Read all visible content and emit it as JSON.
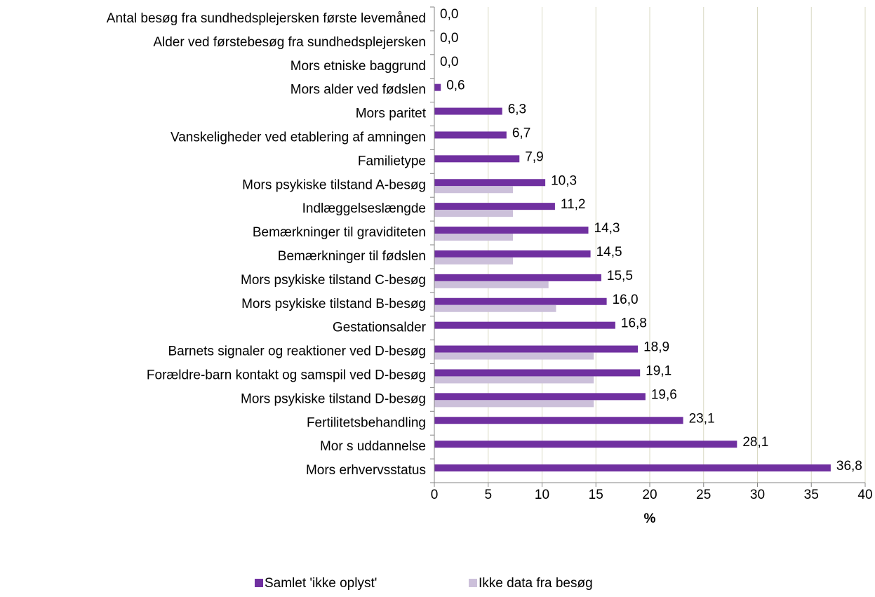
{
  "chart_data": {
    "type": "bar",
    "orientation": "horizontal",
    "categories": [
      "Antal besøg fra sundhedsplejersken første levemåned",
      "Alder ved førstebesøg fra sundhedsplejersken",
      "Mors etniske baggrund",
      "Mors alder ved fødslen",
      "Mors paritet",
      "Vanskeligheder ved etablering af amningen",
      "Familietype",
      "Mors psykiske tilstand A-besøg",
      "Indlæggelseslængde",
      "Bemærkninger til graviditeten",
      "Bemærkninger til fødslen",
      "Mors psykiske tilstand C-besøg",
      "Mors psykiske tilstand B-besøg",
      "Gestationsalder",
      "Barnets signaler og reaktioner ved D-besøg",
      "Forældre-barn kontakt og samspil ved D-besøg",
      "Mors psykiske tilstand D-besøg",
      "Fertilitetsbehandling",
      "Mor s uddannelse",
      "Mors erhvervsstatus"
    ],
    "series": [
      {
        "name": "Samlet 'ikke oplyst'",
        "color": "#7030a0",
        "values": [
          0,
          0,
          0,
          0.6,
          6.3,
          6.7,
          7.9,
          10.3,
          11.2,
          14.3,
          14.5,
          15.5,
          16.0,
          16.8,
          18.9,
          19.1,
          19.6,
          23.1,
          28.1,
          36.8
        ],
        "value_labels": [
          "0,0",
          "0,0",
          "0,0",
          "0,6",
          "6,3",
          "6,7",
          "7,9",
          "10,3",
          "11,2",
          "14,3",
          "14,5",
          "15,5",
          "16,0",
          "16,8",
          "18,9",
          "19,1",
          "19,6",
          "23,1",
          "28,1",
          "36,8"
        ]
      },
      {
        "name": "Ikke data fra besøg",
        "color": "#ccc0da",
        "values": [
          0,
          0,
          0,
          0,
          0,
          0,
          0,
          7.3,
          7.3,
          7.3,
          7.3,
          10.6,
          11.3,
          0,
          14.8,
          14.8,
          14.8,
          0,
          0,
          0
        ]
      }
    ],
    "x_label": "%",
    "xlim": [
      0,
      40
    ],
    "xticks": [
      0,
      5,
      10,
      15,
      20,
      25,
      30,
      35,
      40
    ],
    "grid": true,
    "legend": "bottom"
  }
}
